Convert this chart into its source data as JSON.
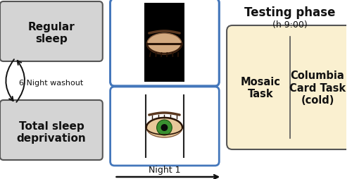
{
  "bg_color": "#ffffff",
  "box1_text": "Regular\nsleep",
  "box2_text": "Total sleep\ndeprivation",
  "washout_text": "6 Night washout",
  "night_label": "Night 1",
  "testing_title": "Testing phase",
  "testing_subtitle": "(h 9:00)",
  "mosaic_text": "Mosaic\nTask",
  "columbia_text": "Columbia\nCard Task\n(cold)",
  "box_gray_fill": "#d4d4d4",
  "box_gray_edge": "#555555",
  "testing_fill": "#faf0d0",
  "testing_edge": "#555555",
  "screen_edge": "#4477bb",
  "screen_fill": "#ffffff",
  "screen_black_fill": "#000000",
  "eye_closed_skin": "#d4aa80",
  "eye_open_skin": "#e8c89a",
  "arrow_color": "#111111"
}
